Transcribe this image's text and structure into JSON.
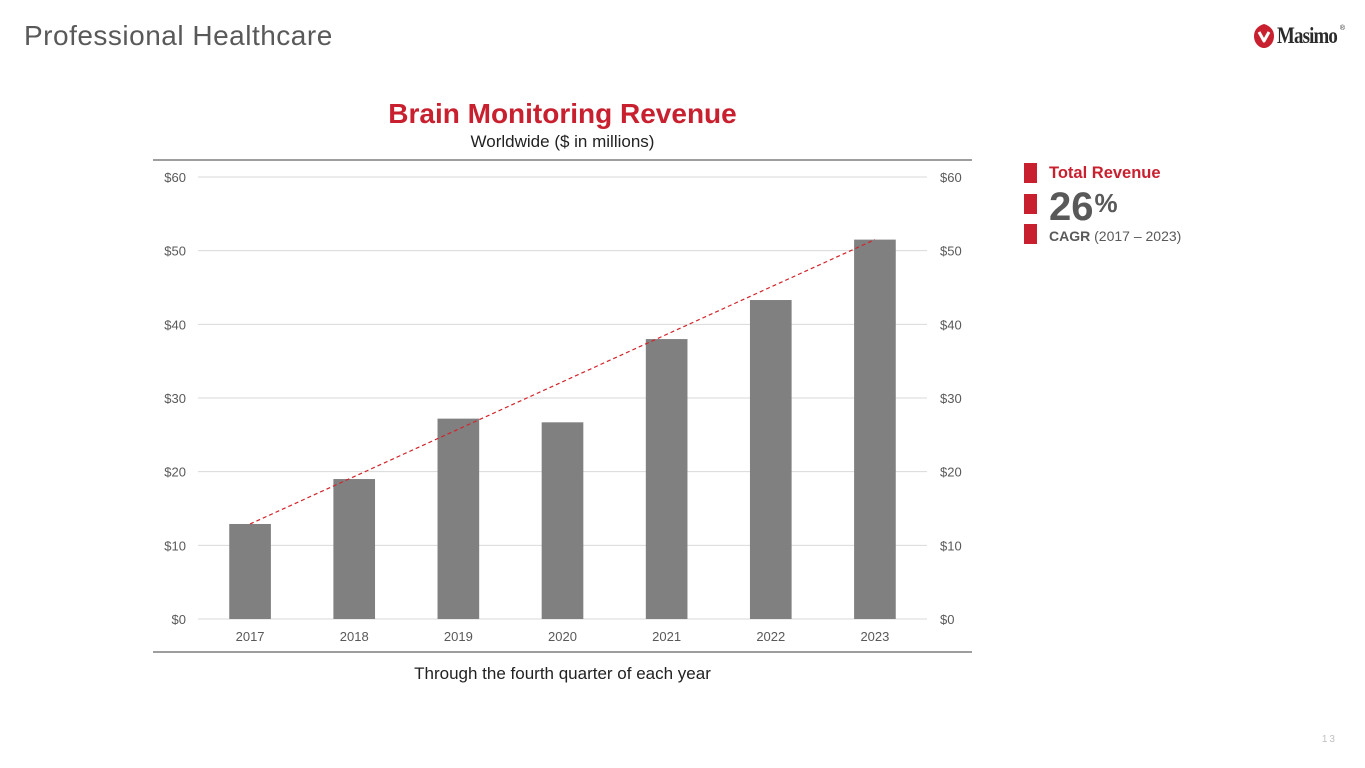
{
  "page": {
    "title": "Professional Healthcare",
    "logo_text": "Masimo",
    "logo_reg": "®",
    "page_number": "13"
  },
  "side_panel": {
    "label": "Total Revenue",
    "value": "26",
    "unit": "%",
    "cagr_label": "CAGR",
    "cagr_range": "(2017 – 2023)"
  },
  "colors": {
    "accent": "#c8202f",
    "bar": "#808080",
    "trend": "#d2232a",
    "grid": "#d9d9d9",
    "border": "#7f7f7f",
    "tick": "#595959"
  },
  "chart_data": {
    "type": "bar",
    "title": "Brain Monitoring Revenue",
    "subtitle": "Worldwide ($ in millions)",
    "note": "Through the fourth quarter of each year",
    "categories": [
      "2017",
      "2018",
      "2019",
      "2020",
      "2021",
      "2022",
      "2023"
    ],
    "values": [
      12.9,
      19.0,
      27.2,
      26.7,
      38.0,
      43.3,
      51.5
    ],
    "ylim": [
      0,
      60
    ],
    "yticks": [
      0,
      10,
      20,
      30,
      40,
      50,
      60
    ],
    "ytick_labels": [
      "$0",
      "$10",
      "$20",
      "$30",
      "$40",
      "$50",
      "$60"
    ],
    "secondary_axis": true,
    "grid": true,
    "trendline": {
      "style": "dashed",
      "from_category": "2017",
      "to_category": "2023"
    }
  }
}
